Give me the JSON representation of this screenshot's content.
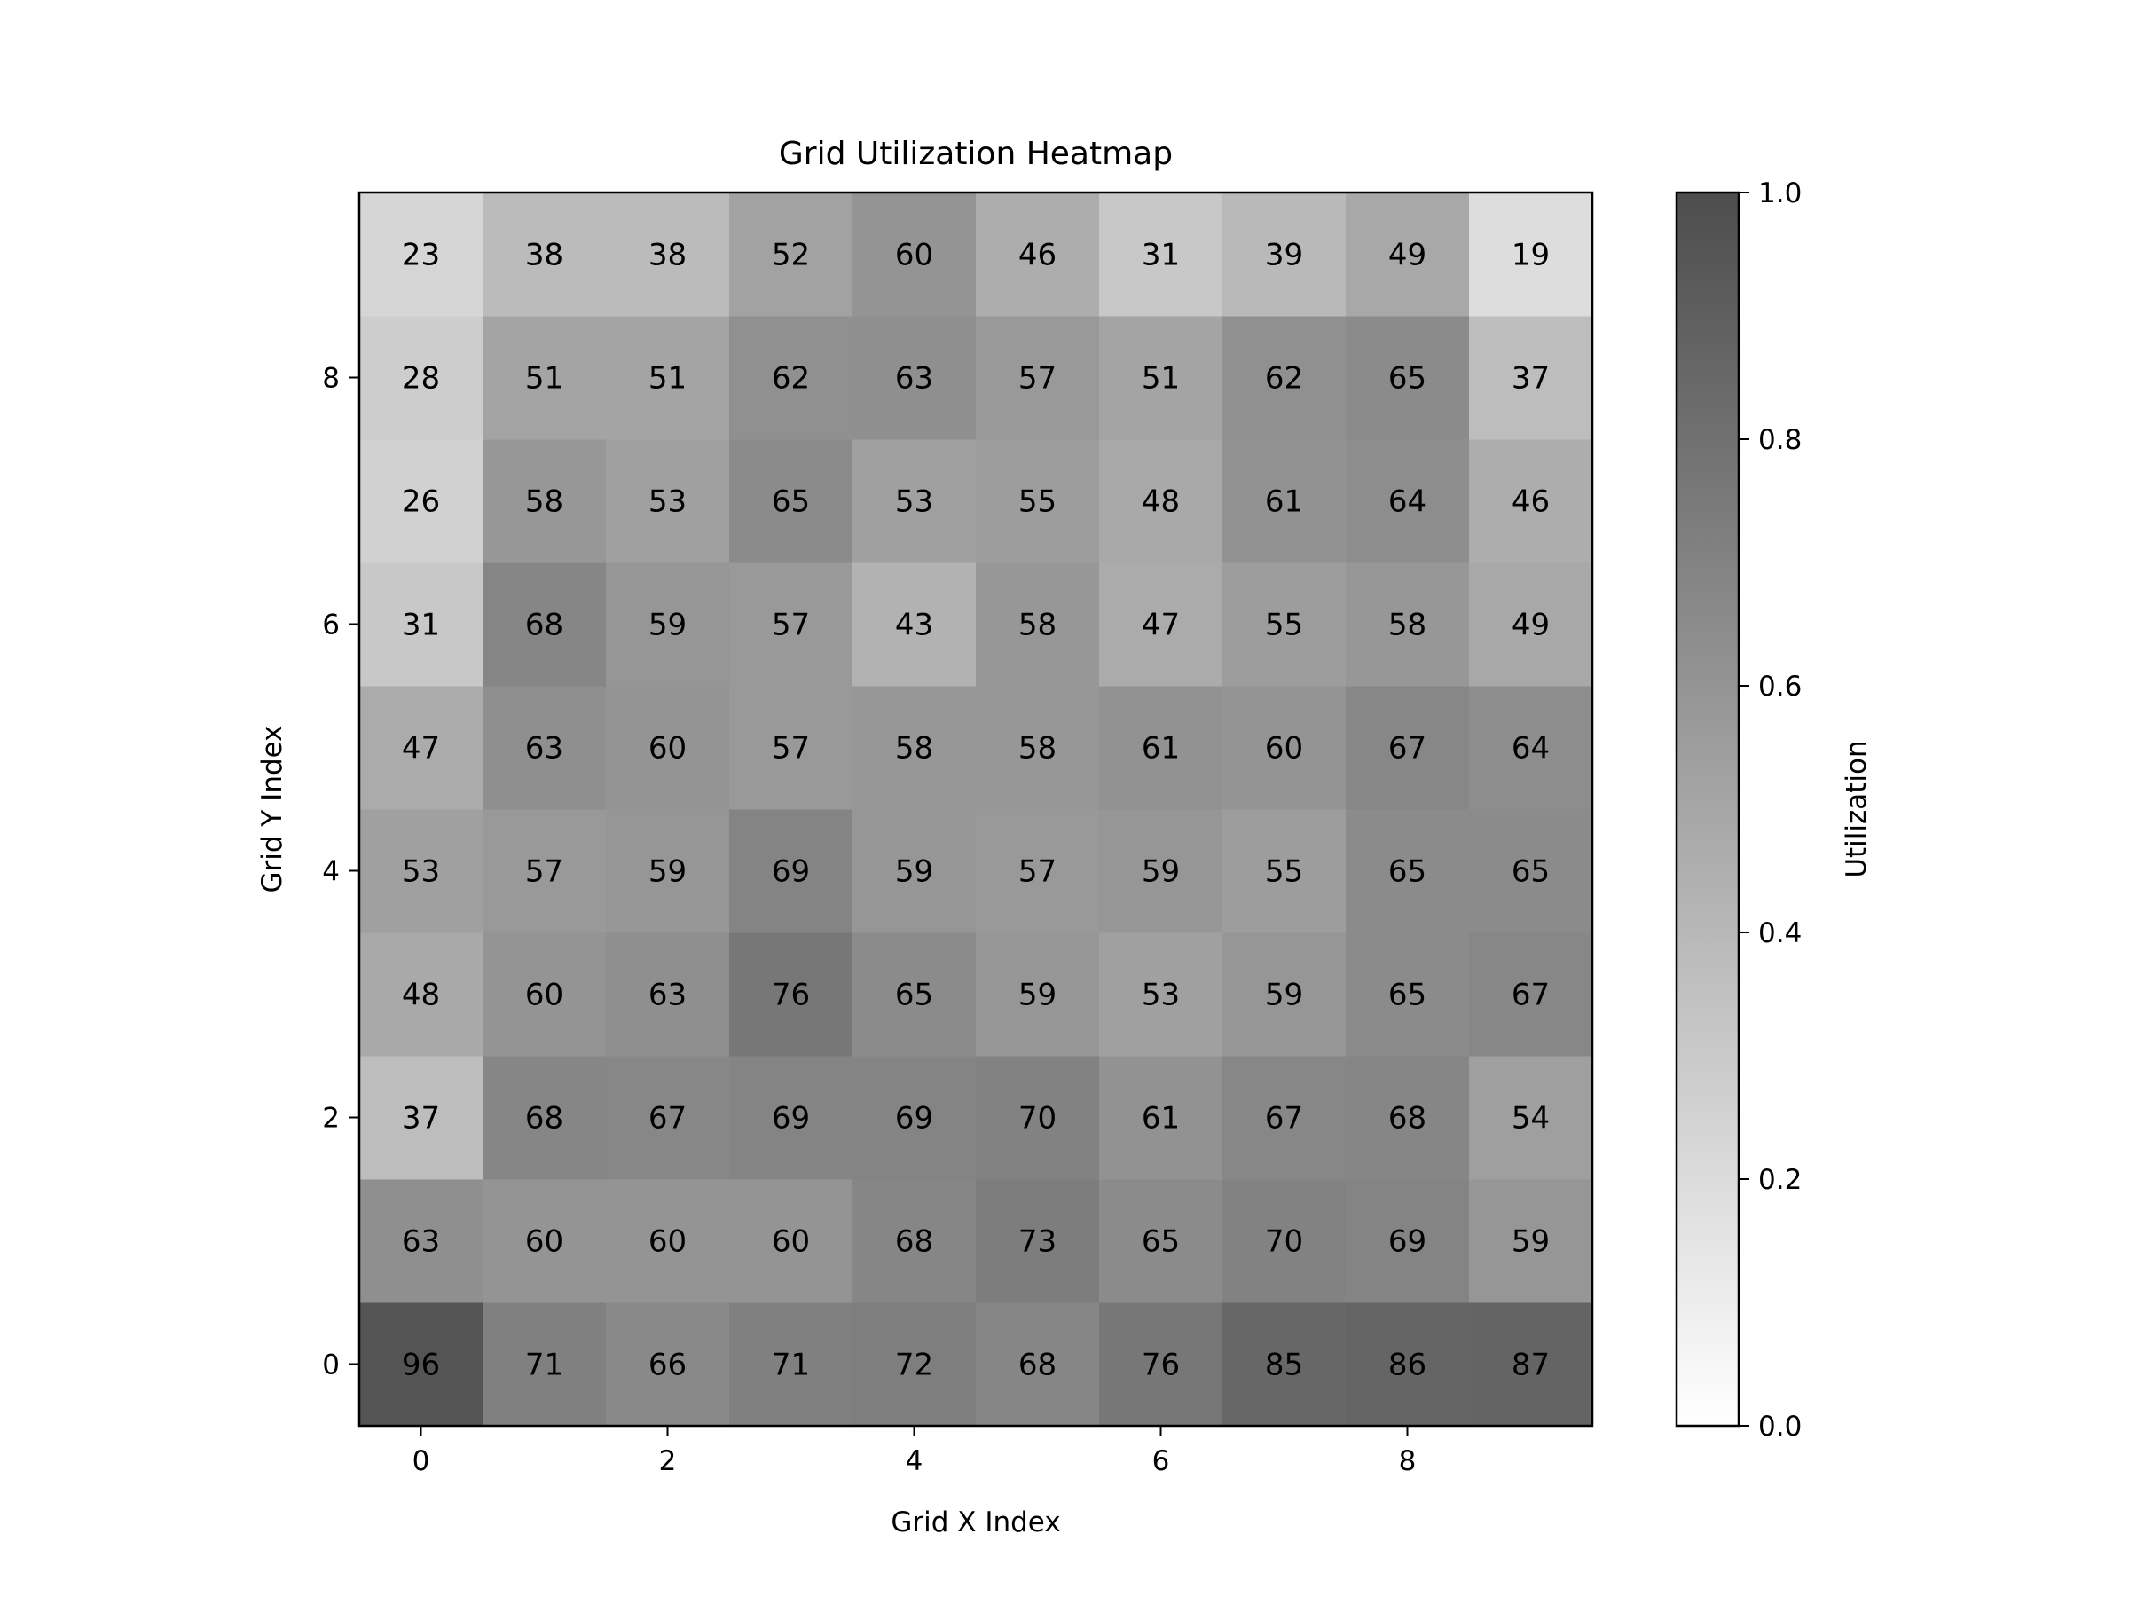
{
  "chart_data": {
    "type": "heatmap",
    "title": "Grid Utilization Heatmap",
    "xlabel": "Grid X Index",
    "ylabel": "Grid Y Index",
    "x_ticks": [
      "0",
      "2",
      "4",
      "6",
      "8"
    ],
    "y_ticks": [
      "0",
      "2",
      "4",
      "6",
      "8"
    ],
    "x": [
      0,
      1,
      2,
      3,
      4,
      5,
      6,
      7,
      8,
      9
    ],
    "y": [
      0,
      1,
      2,
      3,
      4,
      5,
      6,
      7,
      8,
      9
    ],
    "values_by_row_y0_first": [
      [
        96,
        71,
        66,
        71,
        72,
        68,
        76,
        85,
        86,
        87
      ],
      [
        63,
        60,
        60,
        60,
        68,
        73,
        65,
        70,
        69,
        59
      ],
      [
        37,
        68,
        67,
        69,
        69,
        70,
        61,
        67,
        68,
        54
      ],
      [
        48,
        60,
        63,
        76,
        65,
        59,
        53,
        59,
        65,
        67
      ],
      [
        53,
        57,
        59,
        69,
        59,
        57,
        59,
        55,
        65,
        65
      ],
      [
        47,
        63,
        60,
        57,
        58,
        58,
        61,
        60,
        67,
        64
      ],
      [
        31,
        68,
        59,
        57,
        43,
        58,
        47,
        55,
        58,
        49
      ],
      [
        26,
        58,
        53,
        65,
        53,
        55,
        48,
        61,
        64,
        46
      ],
      [
        28,
        51,
        51,
        62,
        63,
        57,
        51,
        62,
        65,
        37
      ],
      [
        23,
        38,
        38,
        52,
        60,
        46,
        31,
        39,
        49,
        19
      ]
    ],
    "colorbar": {
      "label": "Utilization",
      "range": [
        0.0,
        1.0
      ],
      "ticks": [
        "0.0",
        "0.2",
        "0.4",
        "0.6",
        "0.8",
        "1.0"
      ],
      "colormap": "greys",
      "color_low": "#ffffff",
      "color_high": "#000000",
      "alpha": 0.7
    },
    "grid": false,
    "legend": "none"
  }
}
